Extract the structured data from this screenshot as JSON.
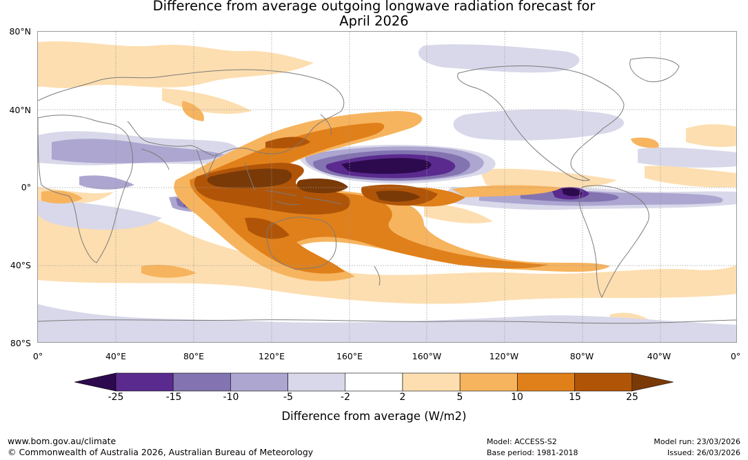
{
  "title": {
    "line1": "Difference from average outgoing longwave radiation forecast for",
    "line2": "April 2026"
  },
  "lat_labels": [
    "80°N",
    "40°N",
    "0°",
    "40°S",
    "80°S"
  ],
  "lon_labels": [
    "0°",
    "40°E",
    "80°E",
    "120°E",
    "160°E",
    "160°W",
    "120°W",
    "80°W",
    "40°W",
    "0°"
  ],
  "legend": {
    "label": "Difference from average (W/m2)",
    "ticks": [
      "-25",
      "-15",
      "-10",
      "-5",
      "-2",
      "2",
      "5",
      "10",
      "15",
      "25"
    ],
    "colors": [
      "#2d0a4e",
      "#5a2a8f",
      "#8373b0",
      "#aca6d0",
      "#d8d8ea",
      "#ffffff",
      "#fddeb0",
      "#f7b45e",
      "#e0801a",
      "#b05508",
      "#7a3a08"
    ]
  },
  "footer": {
    "website": "www.bom.gov.au/climate",
    "copyright": "© Commonwealth of Australia 2026, Australian Bureau of Meteorology",
    "model": "Model: ACCESS-S2",
    "base_period": "Base period: 1981-2018",
    "model_run": "Model run: 23/03/2026",
    "issued": "Issued: 26/03/2026"
  }
}
